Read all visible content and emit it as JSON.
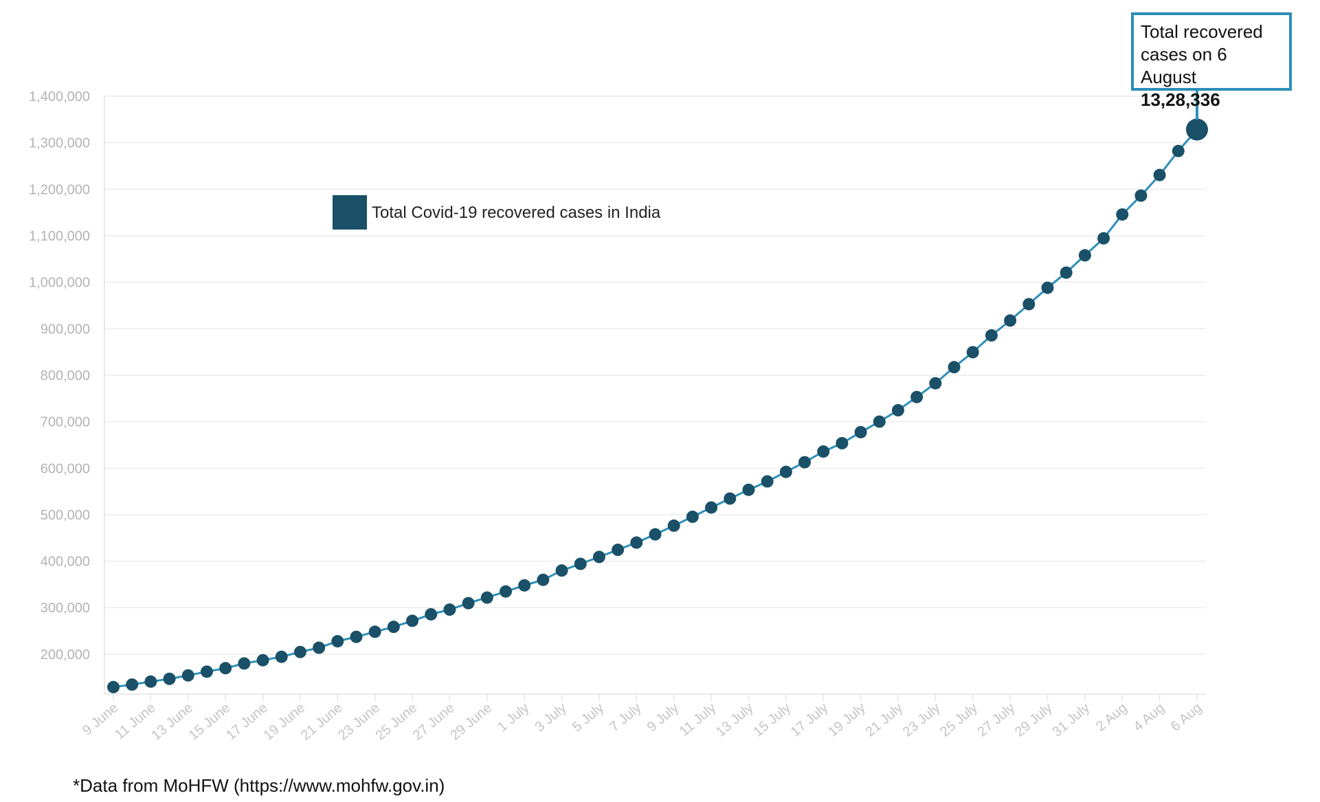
{
  "chart_data": {
    "type": "line",
    "title": "",
    "xlabel": "",
    "ylabel": "",
    "ylim": [
      120000,
      1400000
    ],
    "yticks": [
      200000,
      300000,
      400000,
      500000,
      600000,
      700000,
      800000,
      900000,
      1000000,
      1100000,
      1200000,
      1300000,
      1400000
    ],
    "ytick_labels": [
      "200,000",
      "300,000",
      "400,000",
      "500,000",
      "600,000",
      "700,000",
      "800,000",
      "900,000",
      "1,000,000",
      "1,100,000",
      "1,200,000",
      "1,300,000",
      "1,400,000"
    ],
    "x": [
      "9 June",
      "10 June",
      "11 June",
      "12 June",
      "13 June",
      "14 June",
      "15 June",
      "16 June",
      "17 June",
      "18 June",
      "19 June",
      "20 June",
      "21 June",
      "22 June",
      "23 June",
      "24 June",
      "25 June",
      "26 June",
      "27 June",
      "28 June",
      "29 June",
      "30 June",
      "1 July",
      "2 July",
      "3 July",
      "4 July",
      "5 July",
      "6 July",
      "7 July",
      "8 July",
      "9 July",
      "10 July",
      "11 July",
      "12 July",
      "13 July",
      "14 July",
      "15 July",
      "16 July",
      "17 July",
      "18 July",
      "19 July",
      "20 July",
      "21 July",
      "22 July",
      "23 July",
      "24 July",
      "25 July",
      "26 July",
      "27 July",
      "28 July",
      "29 July",
      "30 July",
      "31 July",
      "1 Aug",
      "2 Aug",
      "3 Aug",
      "4 Aug",
      "5 Aug",
      "6 Aug"
    ],
    "xtick_labels": [
      "9 June",
      "11 June",
      "13 June",
      "15 June",
      "17 June",
      "19 June",
      "21 June",
      "23 June",
      "25 June",
      "27 June",
      "29 June",
      "1 July",
      "3 July",
      "5 July",
      "7 July",
      "9 July",
      "11 July",
      "13 July",
      "15 July",
      "17 July",
      "19 July",
      "21 July",
      "23 July",
      "25 July",
      "27 July",
      "29 July",
      "31 July",
      "2 Aug",
      "4 Aug",
      "6 Aug"
    ],
    "series": [
      {
        "name": "Total Covid-19 recovered cases in India",
        "color": "#1a5068",
        "line_color": "#2b8fba",
        "values": [
          129215,
          134670,
          141029,
          146972,
          154330,
          162379,
          169798,
          180013,
          186935,
          194325,
          204711,
          213831,
          227756,
          237196,
          248190,
          258685,
          271697,
          285637,
          295881,
          309713,
          321723,
          334822,
          347979,
          359860,
          379892,
          394227,
          409083,
          424433,
          439948,
          457659,
          476378,
          495513,
          515386,
          534618,
          553471,
          571459,
          592032,
          612815,
          635757,
          653751,
          677423,
          700087,
          724578,
          753050,
          782607,
          817208,
          849432,
          885577,
          917568,
          952743,
          988029,
          1020582,
          1057805,
          1094374,
          1145629,
          1186203,
          1230509,
          1282215,
          1328336
        ]
      }
    ],
    "legend": {
      "label": "Total Covid-19 recovered cases in India",
      "position": "top-left"
    },
    "grid": true,
    "annotation": {
      "line1": "Total recovered",
      "line2": "cases on 6 August",
      "value": "13,28,336"
    },
    "footnote": "*Data from MoHFW (https://www.mohfw.gov.in)"
  }
}
